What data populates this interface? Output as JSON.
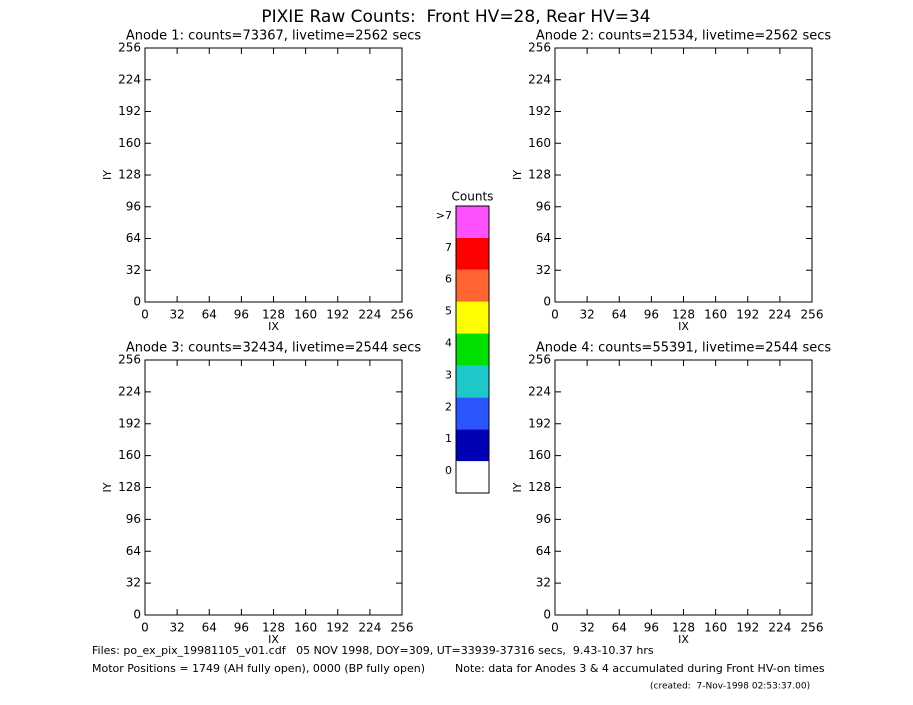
{
  "title": "PIXIE Raw Counts:  Front HV=28, Rear HV=34",
  "chart_data": [
    {
      "type": "heatmap",
      "title": "Anode 1: counts=73367, livetime=2562 secs",
      "xlabel": "IX",
      "ylabel": "IY",
      "xlim": [
        0,
        256
      ],
      "ylim": [
        0,
        256
      ],
      "xticks": [
        0,
        32,
        64,
        96,
        128,
        160,
        192,
        224,
        256
      ],
      "yticks": [
        0,
        32,
        64,
        96,
        128,
        160,
        192,
        224,
        256
      ]
    },
    {
      "type": "heatmap",
      "title": "Anode 2: counts=21534, livetime=2562 secs",
      "xlabel": "IX",
      "ylabel": "IY",
      "xlim": [
        0,
        256
      ],
      "ylim": [
        0,
        256
      ],
      "xticks": [
        0,
        32,
        64,
        96,
        128,
        160,
        192,
        224,
        256
      ],
      "yticks": [
        0,
        32,
        64,
        96,
        128,
        160,
        192,
        224,
        256
      ]
    },
    {
      "type": "heatmap",
      "title": "Anode 3: counts=32434, livetime=2544 secs",
      "xlabel": "IX",
      "ylabel": "IY",
      "xlim": [
        0,
        256
      ],
      "ylim": [
        0,
        256
      ],
      "xticks": [
        0,
        32,
        64,
        96,
        128,
        160,
        192,
        224,
        256
      ],
      "yticks": [
        0,
        32,
        64,
        96,
        128,
        160,
        192,
        224,
        256
      ]
    },
    {
      "type": "heatmap",
      "title": "Anode 4: counts=55391, livetime=2544 secs",
      "xlabel": "IX",
      "ylabel": "IY",
      "xlim": [
        0,
        256
      ],
      "ylim": [
        0,
        256
      ],
      "xticks": [
        0,
        32,
        64,
        96,
        128,
        160,
        192,
        224,
        256
      ],
      "yticks": [
        0,
        32,
        64,
        96,
        128,
        160,
        192,
        224,
        256
      ]
    }
  ],
  "colorbar": {
    "title": "Counts",
    "ticks": [
      0,
      1,
      2,
      3,
      4,
      5,
      6,
      7,
      {
        "value": 8,
        "label": ">7"
      }
    ],
    "colors": [
      "#ffffff",
      "#0000b4",
      "#2a55ff",
      "#1ec8c8",
      "#00e000",
      "#ffff00",
      "#ff6432",
      "#ff0000",
      "#ff50ff"
    ]
  },
  "footer": {
    "files": "Files: po_ex_pix_19981105_v01.cdf   05 NOV 1998, DOY=309, UT=33939-37316 secs,  9.43-10.37 hrs",
    "motor": "Motor Positions = 1749 (AH fully open), 0000 (BP fully open)",
    "note": "Note: data for Anodes 3 & 4 accumulated during Front HV-on times",
    "created": "(created:  7-Nov-1998 02:53:37.00)"
  }
}
